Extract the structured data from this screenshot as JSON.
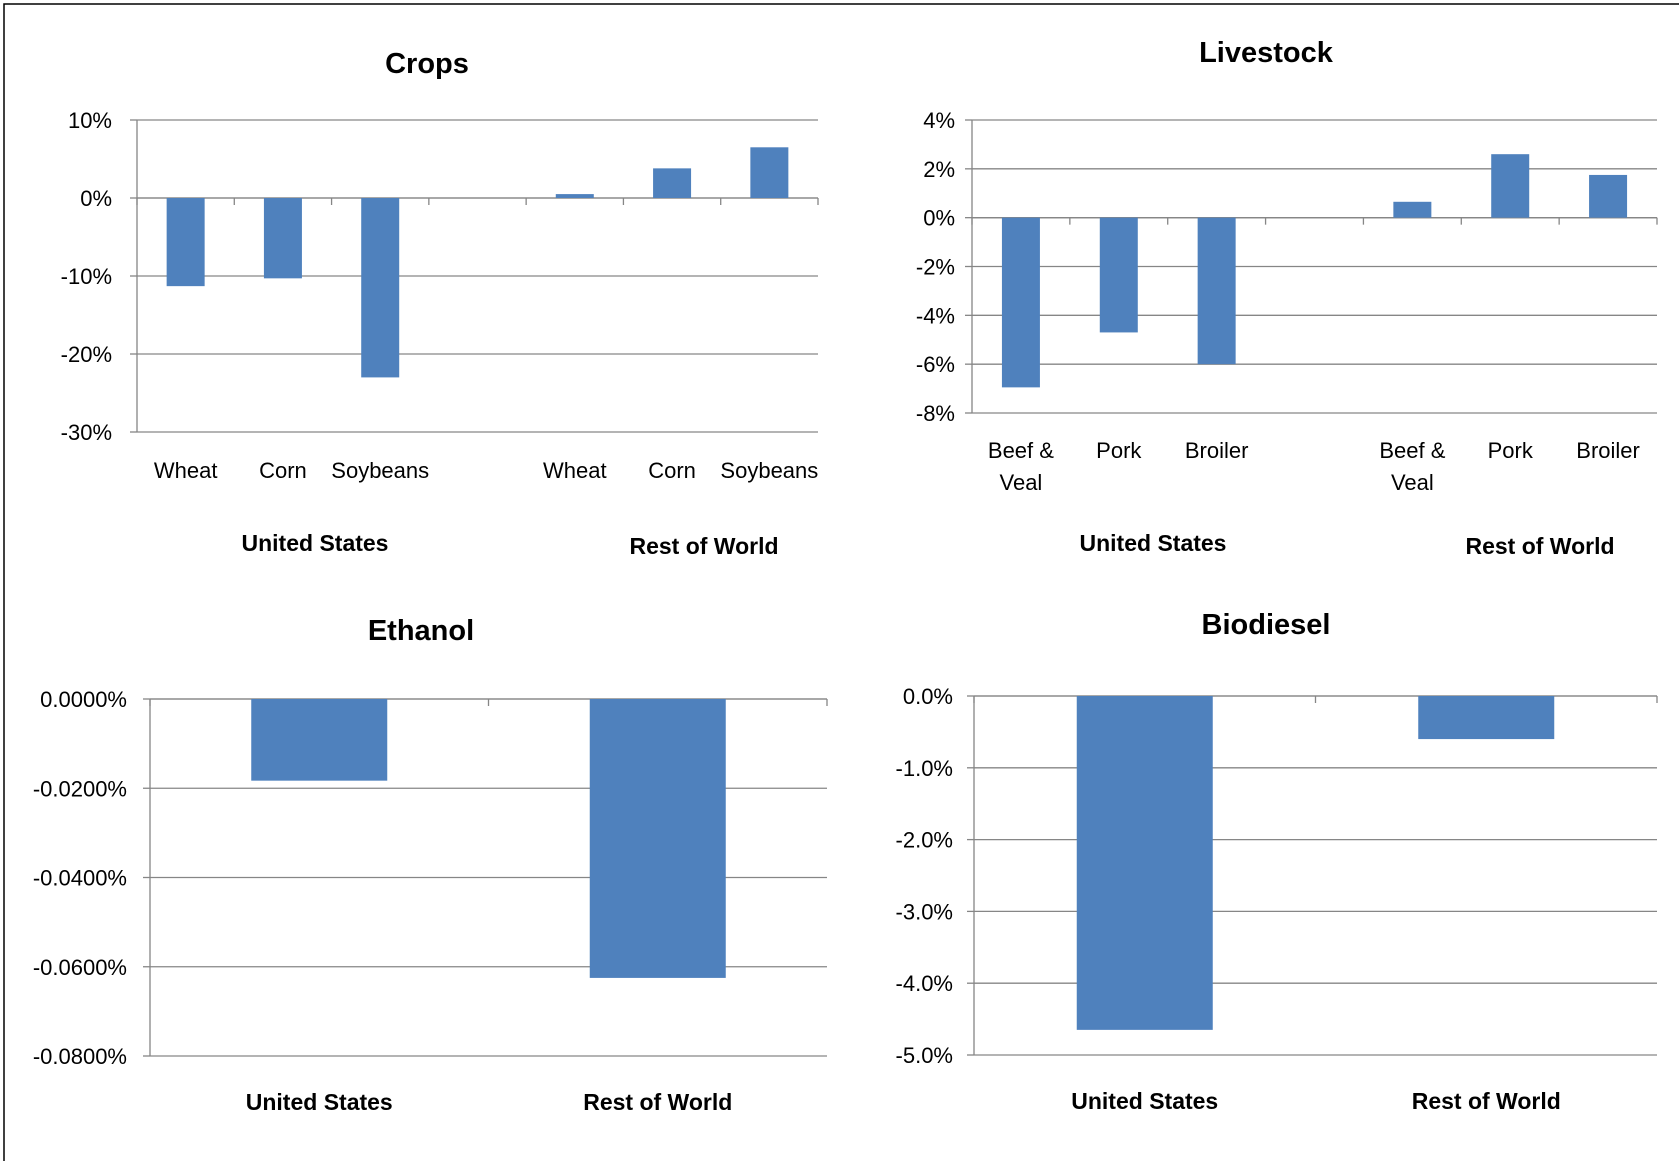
{
  "chart_data": [
    {
      "type": "bar",
      "title": "Crops",
      "groups": [
        {
          "name": "United States",
          "categories": [
            "Wheat",
            "Corn",
            "Soybeans"
          ],
          "values": [
            -11.3,
            -10.3,
            -23.0
          ]
        },
        {
          "name": "Rest of World",
          "categories": [
            "Wheat",
            "Corn",
            "Soybeans"
          ],
          "values": [
            0.5,
            3.8,
            6.5
          ]
        }
      ],
      "ylim": [
        -30,
        10
      ],
      "yticks": [
        10,
        0,
        -10,
        -20,
        -30
      ],
      "ytick_labels": [
        "10%",
        "0%",
        "-10%",
        "-20%",
        "-30%"
      ],
      "grid": true,
      "color": "#4f81bd"
    },
    {
      "type": "bar",
      "title": "Livestock",
      "groups": [
        {
          "name": "United States",
          "categories": [
            [
              "Beef &",
              "Veal"
            ],
            [
              "Pork"
            ],
            [
              "Broiler"
            ]
          ],
          "values": [
            -6.95,
            -4.7,
            -6.0
          ]
        },
        {
          "name": "Rest of World",
          "categories": [
            [
              "Beef &",
              "Veal"
            ],
            [
              "Pork"
            ],
            [
              "Broiler"
            ]
          ],
          "values": [
            0.65,
            2.6,
            1.75
          ]
        }
      ],
      "ylim": [
        -8,
        4
      ],
      "yticks": [
        4,
        2,
        0,
        -2,
        -4,
        -6,
        -8
      ],
      "ytick_labels": [
        "4%",
        "2%",
        "0%",
        "-2%",
        "-4%",
        "-6%",
        "-8%"
      ],
      "grid": true,
      "color": "#4f81bd"
    },
    {
      "type": "bar",
      "title": "Ethanol",
      "categories": [
        "United States",
        "Rest of World"
      ],
      "values": [
        -0.0183,
        -0.0625
      ],
      "ylim": [
        -0.08,
        0
      ],
      "yticks": [
        0,
        -0.02,
        -0.04,
        -0.06,
        -0.08
      ],
      "ytick_labels": [
        "0.0000%",
        "-0.0200%",
        "-0.0400%",
        "-0.0600%",
        "-0.0800%"
      ],
      "grid": true,
      "color": "#4f81bd"
    },
    {
      "type": "bar",
      "title": "Biodiesel",
      "categories": [
        "United States",
        "Rest of World"
      ],
      "values": [
        -4.65,
        -0.6
      ],
      "ylim": [
        -5,
        0
      ],
      "yticks": [
        0,
        -1,
        -2,
        -3,
        -4,
        -5
      ],
      "ytick_labels": [
        "0.0%",
        "-1.0%",
        "-2.0%",
        "-3.0%",
        "-4.0%",
        "-5.0%"
      ],
      "grid": true,
      "color": "#4f81bd"
    }
  ]
}
